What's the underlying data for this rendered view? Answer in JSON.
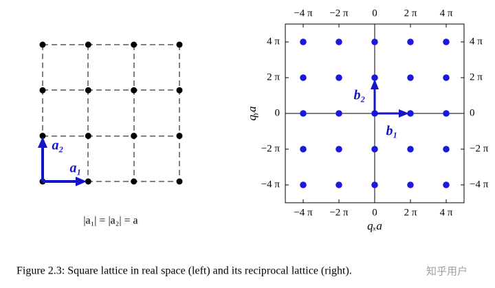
{
  "chart_data": [
    {
      "type": "scatter",
      "color": "#000000",
      "x": [
        0,
        1,
        2,
        3,
        0,
        1,
        2,
        3,
        0,
        1,
        2,
        3,
        0,
        1,
        2,
        3
      ],
      "y": [
        0,
        0,
        0,
        0,
        1,
        1,
        1,
        1,
        2,
        2,
        2,
        2,
        3,
        3,
        3,
        3
      ],
      "annotations": [
        "a₁",
        "a₂"
      ],
      "caption": "|a₁| = |a₂| = a"
    },
    {
      "type": "scatter",
      "color": "#1a1adb",
      "x": [
        -4,
        -2,
        0,
        2,
        4,
        -4,
        -2,
        0,
        2,
        4,
        -4,
        -2,
        0,
        2,
        4,
        -4,
        -2,
        0,
        2,
        4,
        -4,
        -2,
        0,
        2,
        4
      ],
      "y": [
        4,
        4,
        4,
        4,
        4,
        2,
        2,
        2,
        2,
        2,
        0,
        0,
        0,
        0,
        0,
        -2,
        -2,
        -2,
        -2,
        -2,
        -4,
        -4,
        -4,
        -4,
        -4
      ],
      "xlim": [
        -5,
        5
      ],
      "ylim": [
        -5,
        5
      ],
      "xticks": [
        {
          "value": -4,
          "label": "−4 π"
        },
        {
          "value": -2,
          "label": "−2 π"
        },
        0,
        {
          "value": 2,
          "label": "2 π"
        },
        {
          "value": 4,
          "label": "4 π"
        }
      ],
      "yticks": [
        {
          "value": -4,
          "label": "−4 π"
        },
        {
          "value": -2,
          "label": "−2 π"
        },
        0,
        {
          "value": 2,
          "label": "2 π"
        },
        {
          "value": 4,
          "label": "4 π"
        }
      ],
      "xlabel": "qₓa",
      "ylabel": "qᵧa",
      "annotations": [
        "b₁",
        "b₂"
      ]
    }
  ],
  "figure_caption": "Figure 2.3: Square lattice in real space (left) and its reciprocal lattice (right).",
  "watermark": "知乎用户"
}
